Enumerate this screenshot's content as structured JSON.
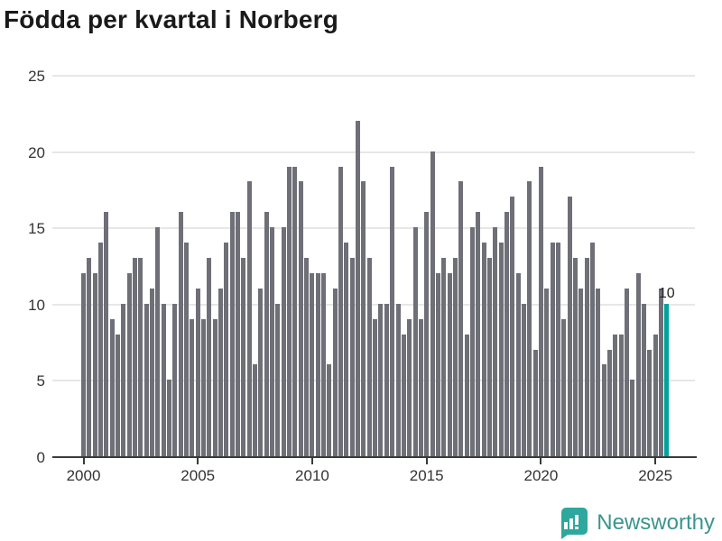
{
  "title": "Födda per kvartal i Norberg",
  "chart_data": {
    "type": "bar",
    "title": "Födda per kvartal i Norberg",
    "x_unit": "quarter",
    "start": "2000-Q1",
    "end": "2025-Q3",
    "categories_years": {
      "2000": [
        12,
        13,
        12,
        14
      ],
      "2001": [
        16,
        9,
        8,
        10
      ],
      "2002": [
        12,
        13,
        13,
        10
      ],
      "2003": [
        11,
        15,
        10,
        5
      ],
      "2004": [
        10,
        16,
        14,
        9
      ],
      "2005": [
        11,
        9,
        13,
        9
      ],
      "2006": [
        11,
        14,
        16,
        16
      ],
      "2007": [
        13,
        18,
        6,
        11
      ],
      "2008": [
        16,
        15,
        10,
        15
      ],
      "2009": [
        19,
        19,
        18,
        13
      ],
      "2010": [
        12,
        12,
        12,
        6
      ],
      "2011": [
        11,
        19,
        14,
        13
      ],
      "2012": [
        22,
        18,
        13,
        9
      ],
      "2013": [
        10,
        10,
        19,
        10
      ],
      "2014": [
        8,
        9,
        15,
        9
      ],
      "2015": [
        16,
        20,
        12,
        13
      ],
      "2016": [
        12,
        13,
        18,
        8
      ],
      "2017": [
        15,
        16,
        14,
        13
      ],
      "2018": [
        15,
        14,
        16,
        17
      ],
      "2019": [
        12,
        10,
        18,
        7
      ],
      "2020": [
        19,
        11,
        14,
        14
      ],
      "2021": [
        9,
        17,
        13,
        11
      ],
      "2022": [
        13,
        14,
        11,
        6
      ],
      "2023": [
        7,
        8,
        8,
        11
      ],
      "2024": [
        5,
        12,
        10,
        7
      ],
      "2025": [
        8,
        11,
        10
      ]
    },
    "values": [
      12,
      13,
      12,
      14,
      16,
      9,
      8,
      10,
      12,
      13,
      13,
      10,
      11,
      15,
      10,
      5,
      10,
      16,
      14,
      9,
      11,
      9,
      13,
      9,
      11,
      14,
      16,
      16,
      13,
      18,
      6,
      11,
      16,
      15,
      10,
      15,
      19,
      19,
      18,
      13,
      12,
      12,
      12,
      6,
      11,
      19,
      14,
      13,
      22,
      18,
      13,
      9,
      10,
      10,
      19,
      10,
      8,
      9,
      15,
      9,
      16,
      20,
      12,
      13,
      12,
      13,
      18,
      8,
      15,
      16,
      14,
      13,
      15,
      14,
      16,
      17,
      12,
      10,
      18,
      7,
      19,
      11,
      14,
      14,
      9,
      17,
      13,
      11,
      13,
      14,
      11,
      6,
      7,
      8,
      8,
      11,
      5,
      12,
      10,
      7,
      8,
      11,
      10
    ],
    "highlight_last": {
      "value": 10,
      "label": "10"
    },
    "xlabel": "",
    "ylabel": "",
    "ylim": [
      0,
      25
    ],
    "yticks": [
      0,
      5,
      10,
      15,
      20,
      25
    ],
    "xticks": [
      "2000",
      "2005",
      "2010",
      "2015",
      "2020",
      "2025"
    ],
    "grid": "horizontal",
    "legend": "none",
    "colors": {
      "bar": "#6f6f78",
      "highlight": "#00a39b",
      "gridline": "#e7e7e7",
      "axis": "#3a3a3a",
      "tick_text": "#333333",
      "title_text": "#1a1a1a",
      "value_label_text": "#222222"
    }
  },
  "footer": {
    "brand": "Newsworthy",
    "logo_icon": "bar-chart-speech-bubble",
    "logo_color": "#2ea79e"
  }
}
